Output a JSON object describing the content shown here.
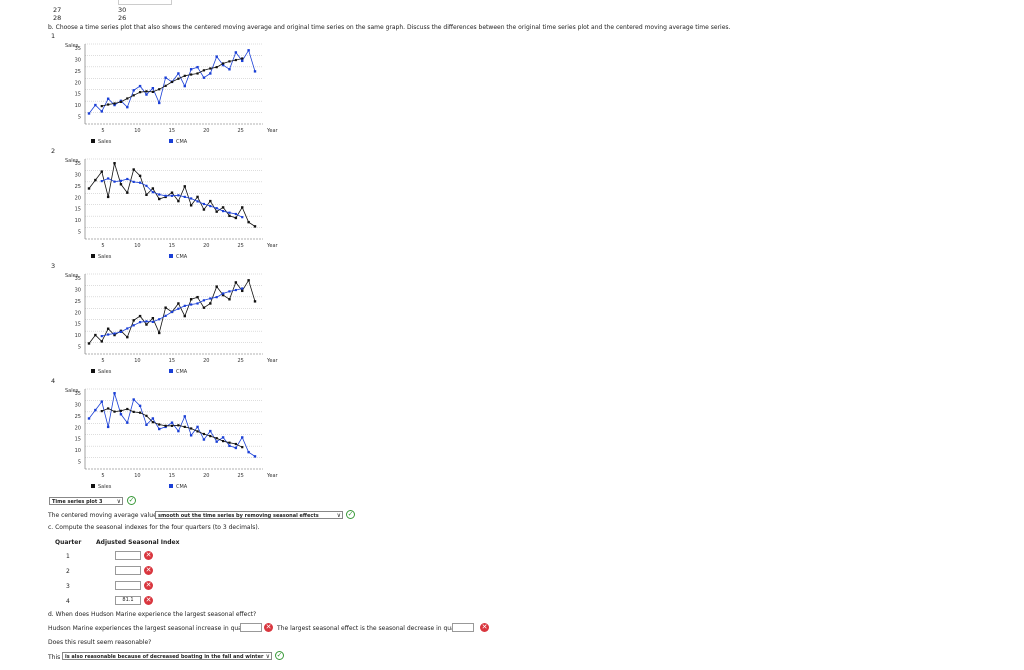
{
  "top_rows": [
    {
      "t": "27",
      "y": "30"
    },
    {
      "t": "28",
      "y": "26"
    }
  ],
  "part_b": "b. Choose a time series plot that also shows the centered moving average and original time series on the same graph. Discuss the differences between the original time series plot and the centered moving average time series.",
  "plots": [
    {
      "num": "1",
      "ylabel": "Sales",
      "yticks": [
        "35",
        "30",
        "25",
        "20",
        "15",
        "10",
        "5"
      ],
      "xticks": [
        "5",
        "10",
        "15",
        "20",
        "25"
      ],
      "xunit": "Year",
      "legend": [
        "Sales",
        "CMA"
      ],
      "trend": "up",
      "sales_color": "#1a3fd6",
      "cma_color": "#111111"
    },
    {
      "num": "2",
      "ylabel": "Sales",
      "yticks": [
        "35",
        "30",
        "25",
        "20",
        "15",
        "10",
        "5"
      ],
      "xticks": [
        "5",
        "10",
        "15",
        "20",
        "25"
      ],
      "xunit": "Year",
      "legend": [
        "Sales",
        "CMA"
      ],
      "trend": "down",
      "sales_color": "#111111",
      "cma_color": "#1a3fd6"
    },
    {
      "num": "3",
      "ylabel": "Sales",
      "yticks": [
        "35",
        "30",
        "25",
        "20",
        "15",
        "10",
        "5"
      ],
      "xticks": [
        "5",
        "10",
        "15",
        "20",
        "25"
      ],
      "xunit": "Year",
      "legend": [
        "Sales",
        "CMA"
      ],
      "trend": "up",
      "sales_color": "#111111",
      "cma_color": "#1a3fd6"
    },
    {
      "num": "4",
      "ylabel": "Sales",
      "yticks": [
        "35",
        "30",
        "25",
        "20",
        "15",
        "10",
        "5"
      ],
      "xticks": [
        "5",
        "10",
        "15",
        "20",
        "25"
      ],
      "xunit": "Year",
      "legend": [
        "Sales",
        "CMA"
      ],
      "trend": "down",
      "sales_color": "#1a3fd6",
      "cma_color": "#111111"
    }
  ],
  "plot_select": "Time series plot 3",
  "cma_sentence": "The centered moving average values",
  "cma_select": "smooth out the time series by removing seasonal effects",
  "part_c": "c. Compute the seasonal indexes for the four quarters (to 3 decimals).",
  "table": {
    "headers": [
      "Quarter",
      "Adjusted Seasonal Index"
    ],
    "rows": [
      {
        "q": "1",
        "value": ""
      },
      {
        "q": "2",
        "value": ""
      },
      {
        "q": "3",
        "value": ""
      },
      {
        "q": "4",
        "value": "81.1"
      }
    ]
  },
  "part_d": "d. When does Hudson Marine experience the largest seasonal effect?",
  "d_sentence1": "Hudson Marine experiences the largest seasonal increase in quarter",
  "d_sentence2": "The largest seasonal effect is the seasonal decrease in quarter",
  "reasonable_q": "Does this result seem reasonable?",
  "this_prefix": "This",
  "this_select": "is also reasonable because of decreased boating in the fall and winter",
  "colors": {
    "blue": "#1a3fd6",
    "correct": "#3a9a3a",
    "wrong": "#d9363e"
  }
}
